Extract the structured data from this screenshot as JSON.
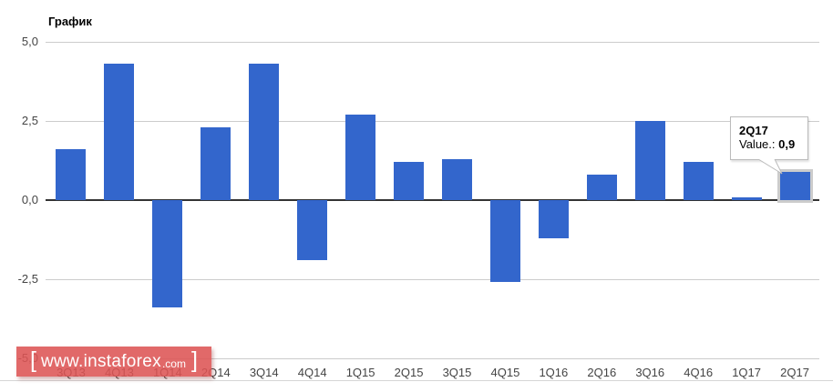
{
  "header": {
    "title": "График"
  },
  "chart_data": {
    "type": "bar",
    "title": "График",
    "categories": [
      "3Q13",
      "4Q13",
      "1Q14",
      "2Q14",
      "3Q14",
      "4Q14",
      "1Q15",
      "2Q15",
      "3Q15",
      "4Q15",
      "1Q16",
      "2Q16",
      "3Q16",
      "4Q16",
      "1Q17",
      "2Q17"
    ],
    "values": [
      1.6,
      4.3,
      -3.4,
      2.3,
      4.3,
      -1.9,
      2.7,
      1.2,
      1.3,
      -2.6,
      -1.2,
      0.8,
      2.5,
      1.2,
      0.1,
      0.9
    ],
    "xlabel": "",
    "ylabel": "",
    "ylim": [
      -5,
      5
    ],
    "yticks": [
      5.0,
      2.5,
      0.0,
      -2.5,
      -5.0
    ],
    "ytick_labels": [
      "5,0",
      "2,5",
      "0,0",
      "-2,5",
      "-5,0"
    ],
    "grid": true,
    "legend": "none",
    "highlighted_index": 15,
    "bar_color": "#3366cc"
  },
  "tooltip": {
    "title": "2Q17",
    "value_label": "Value.:",
    "value": "0,9"
  },
  "watermark": {
    "bracket_left": "[",
    "text_main": "www.instaforex",
    "text_suffix": ".com",
    "bracket_right": "]"
  },
  "colors": {
    "bar": "#3366cc",
    "bar_highlight_outline": "#cccccc",
    "gridline": "#cccccc",
    "baseline": "#333333",
    "axis_text": "#444444",
    "tooltip_border": "#bbbbbb",
    "watermark_background": "#dd5454",
    "watermark_text": "#ffffff"
  }
}
